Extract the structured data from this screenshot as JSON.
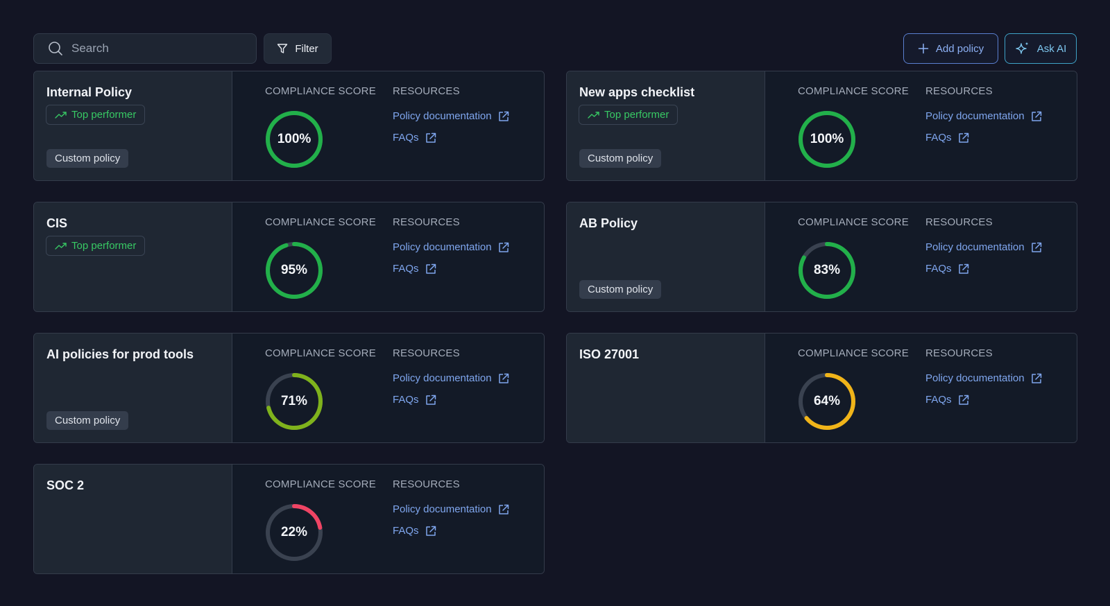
{
  "toolbar": {
    "search_placeholder": "Search",
    "filter_label": "Filter",
    "add_policy_label": "Add policy",
    "ask_ai_label": "Ask AI"
  },
  "labels": {
    "compliance_score": "COMPLIANCE SCORE",
    "resources": "RESOURCES",
    "policy_documentation": "Policy documentation",
    "faqs": "FAQs",
    "top_performer": "Top performer",
    "custom_policy": "Custom policy"
  },
  "colors": {
    "green": "#22b04a",
    "lime": "#7fb21c",
    "yellow": "#f0b419",
    "red": "#ef4464",
    "track": "#3a4250"
  },
  "policies": [
    {
      "name": "Internal Policy",
      "score": 100,
      "score_label": "100%",
      "top_performer": true,
      "custom": true,
      "color": "green"
    },
    {
      "name": "New apps checklist",
      "score": 100,
      "score_label": "100%",
      "top_performer": true,
      "custom": true,
      "color": "green"
    },
    {
      "name": "CIS",
      "score": 95,
      "score_label": "95%",
      "top_performer": true,
      "custom": false,
      "color": "green"
    },
    {
      "name": "AB Policy",
      "score": 83,
      "score_label": "83%",
      "top_performer": false,
      "custom": true,
      "color": "green"
    },
    {
      "name": "AI policies for prod tools",
      "score": 71,
      "score_label": "71%",
      "top_performer": false,
      "custom": true,
      "color": "lime"
    },
    {
      "name": "ISO 27001",
      "score": 64,
      "score_label": "64%",
      "top_performer": false,
      "custom": false,
      "color": "yellow"
    },
    {
      "name": "SOC 2",
      "score": 22,
      "score_label": "22%",
      "top_performer": false,
      "custom": false,
      "color": "red"
    }
  ]
}
